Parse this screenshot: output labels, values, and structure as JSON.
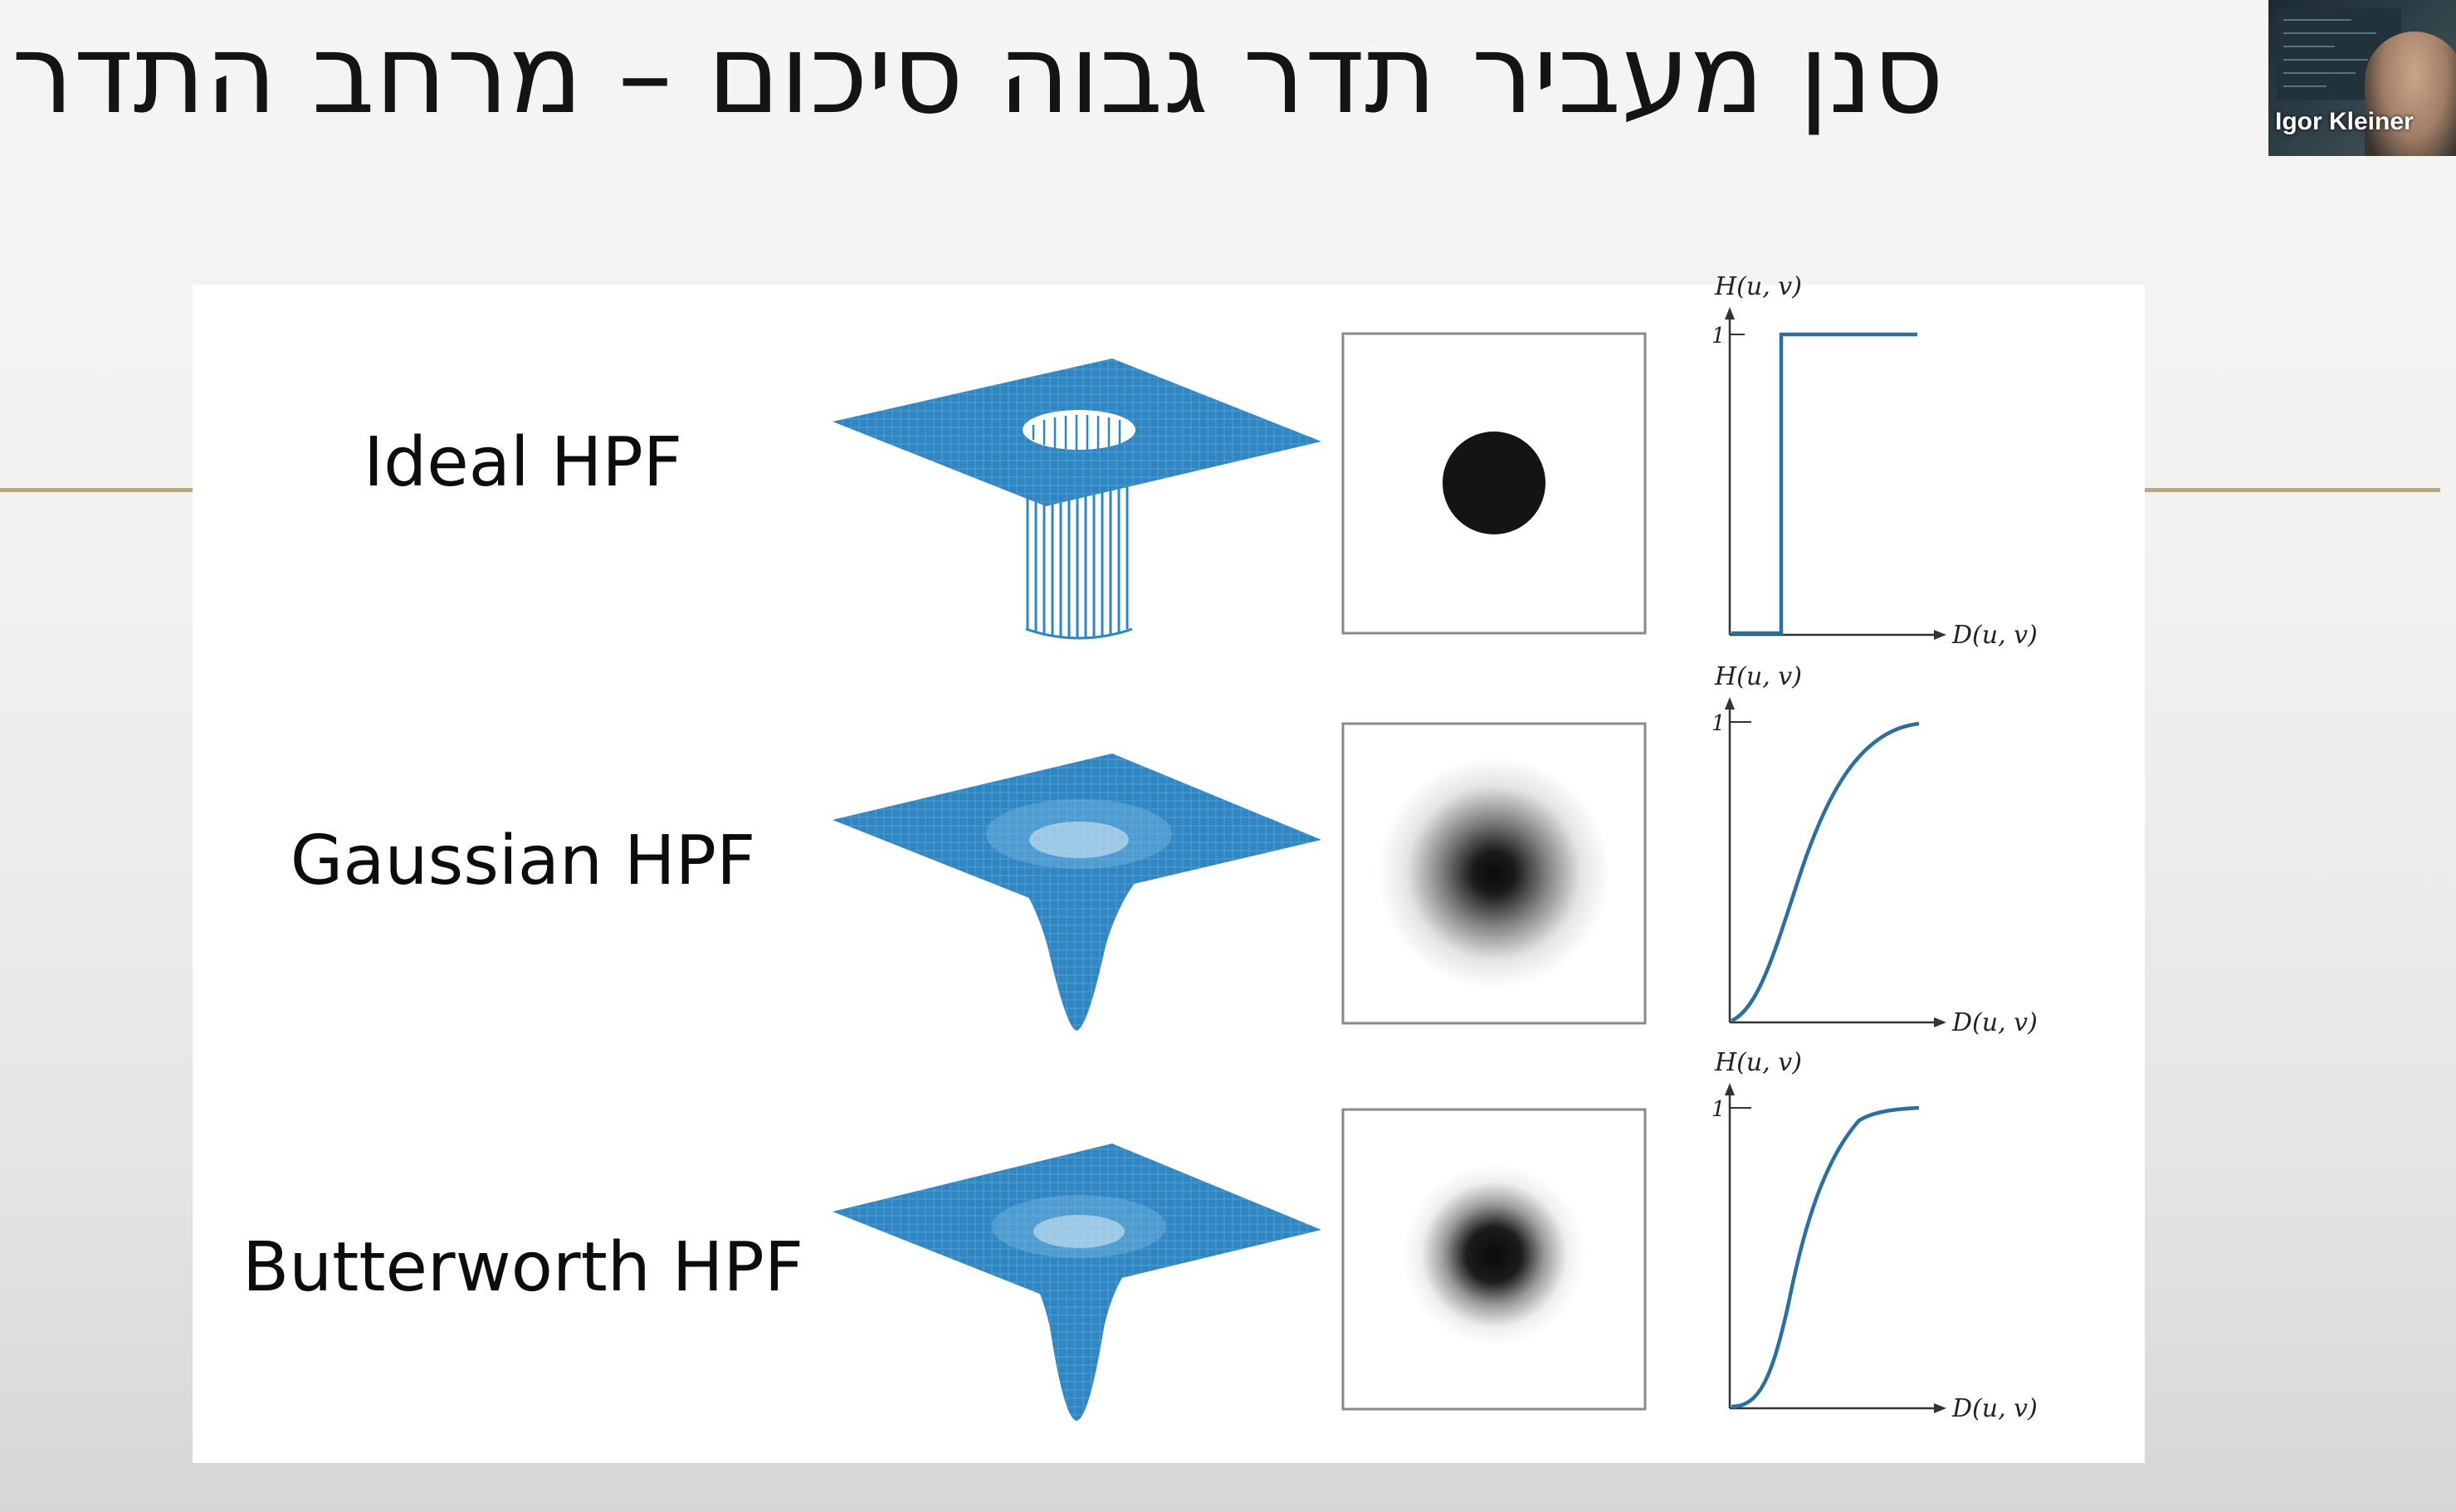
{
  "slide": {
    "title": "סנן מעביר תדר גבוה סיכום – מרחב התדר"
  },
  "webcam": {
    "name": "Igor Kleiner"
  },
  "filters": [
    {
      "label": "Ideal HPF",
      "surface_shape": "cylindrical-hole",
      "image_profile": "sharp-disk",
      "profile_axis": {
        "y_label": "H(u, v)",
        "x_label": "D(u, v)",
        "y_tick": "1"
      }
    },
    {
      "label": "Gaussian HPF",
      "surface_shape": "gaussian-funnel",
      "image_profile": "gaussian-blob",
      "profile_axis": {
        "y_label": "H(u, v)",
        "x_label": "D(u, v)",
        "y_tick": "1"
      }
    },
    {
      "label": "Butterworth HPF",
      "surface_shape": "butterworth-funnel",
      "image_profile": "butterworth-blob",
      "profile_axis": {
        "y_label": "H(u, v)",
        "x_label": "D(u, v)",
        "y_tick": "1"
      }
    }
  ],
  "colors": {
    "surface_blue": "#2f86c2",
    "surface_mesh": "#1f6fa8",
    "curve_blue": "#2a6fa0",
    "rule": "#b8a98a"
  }
}
